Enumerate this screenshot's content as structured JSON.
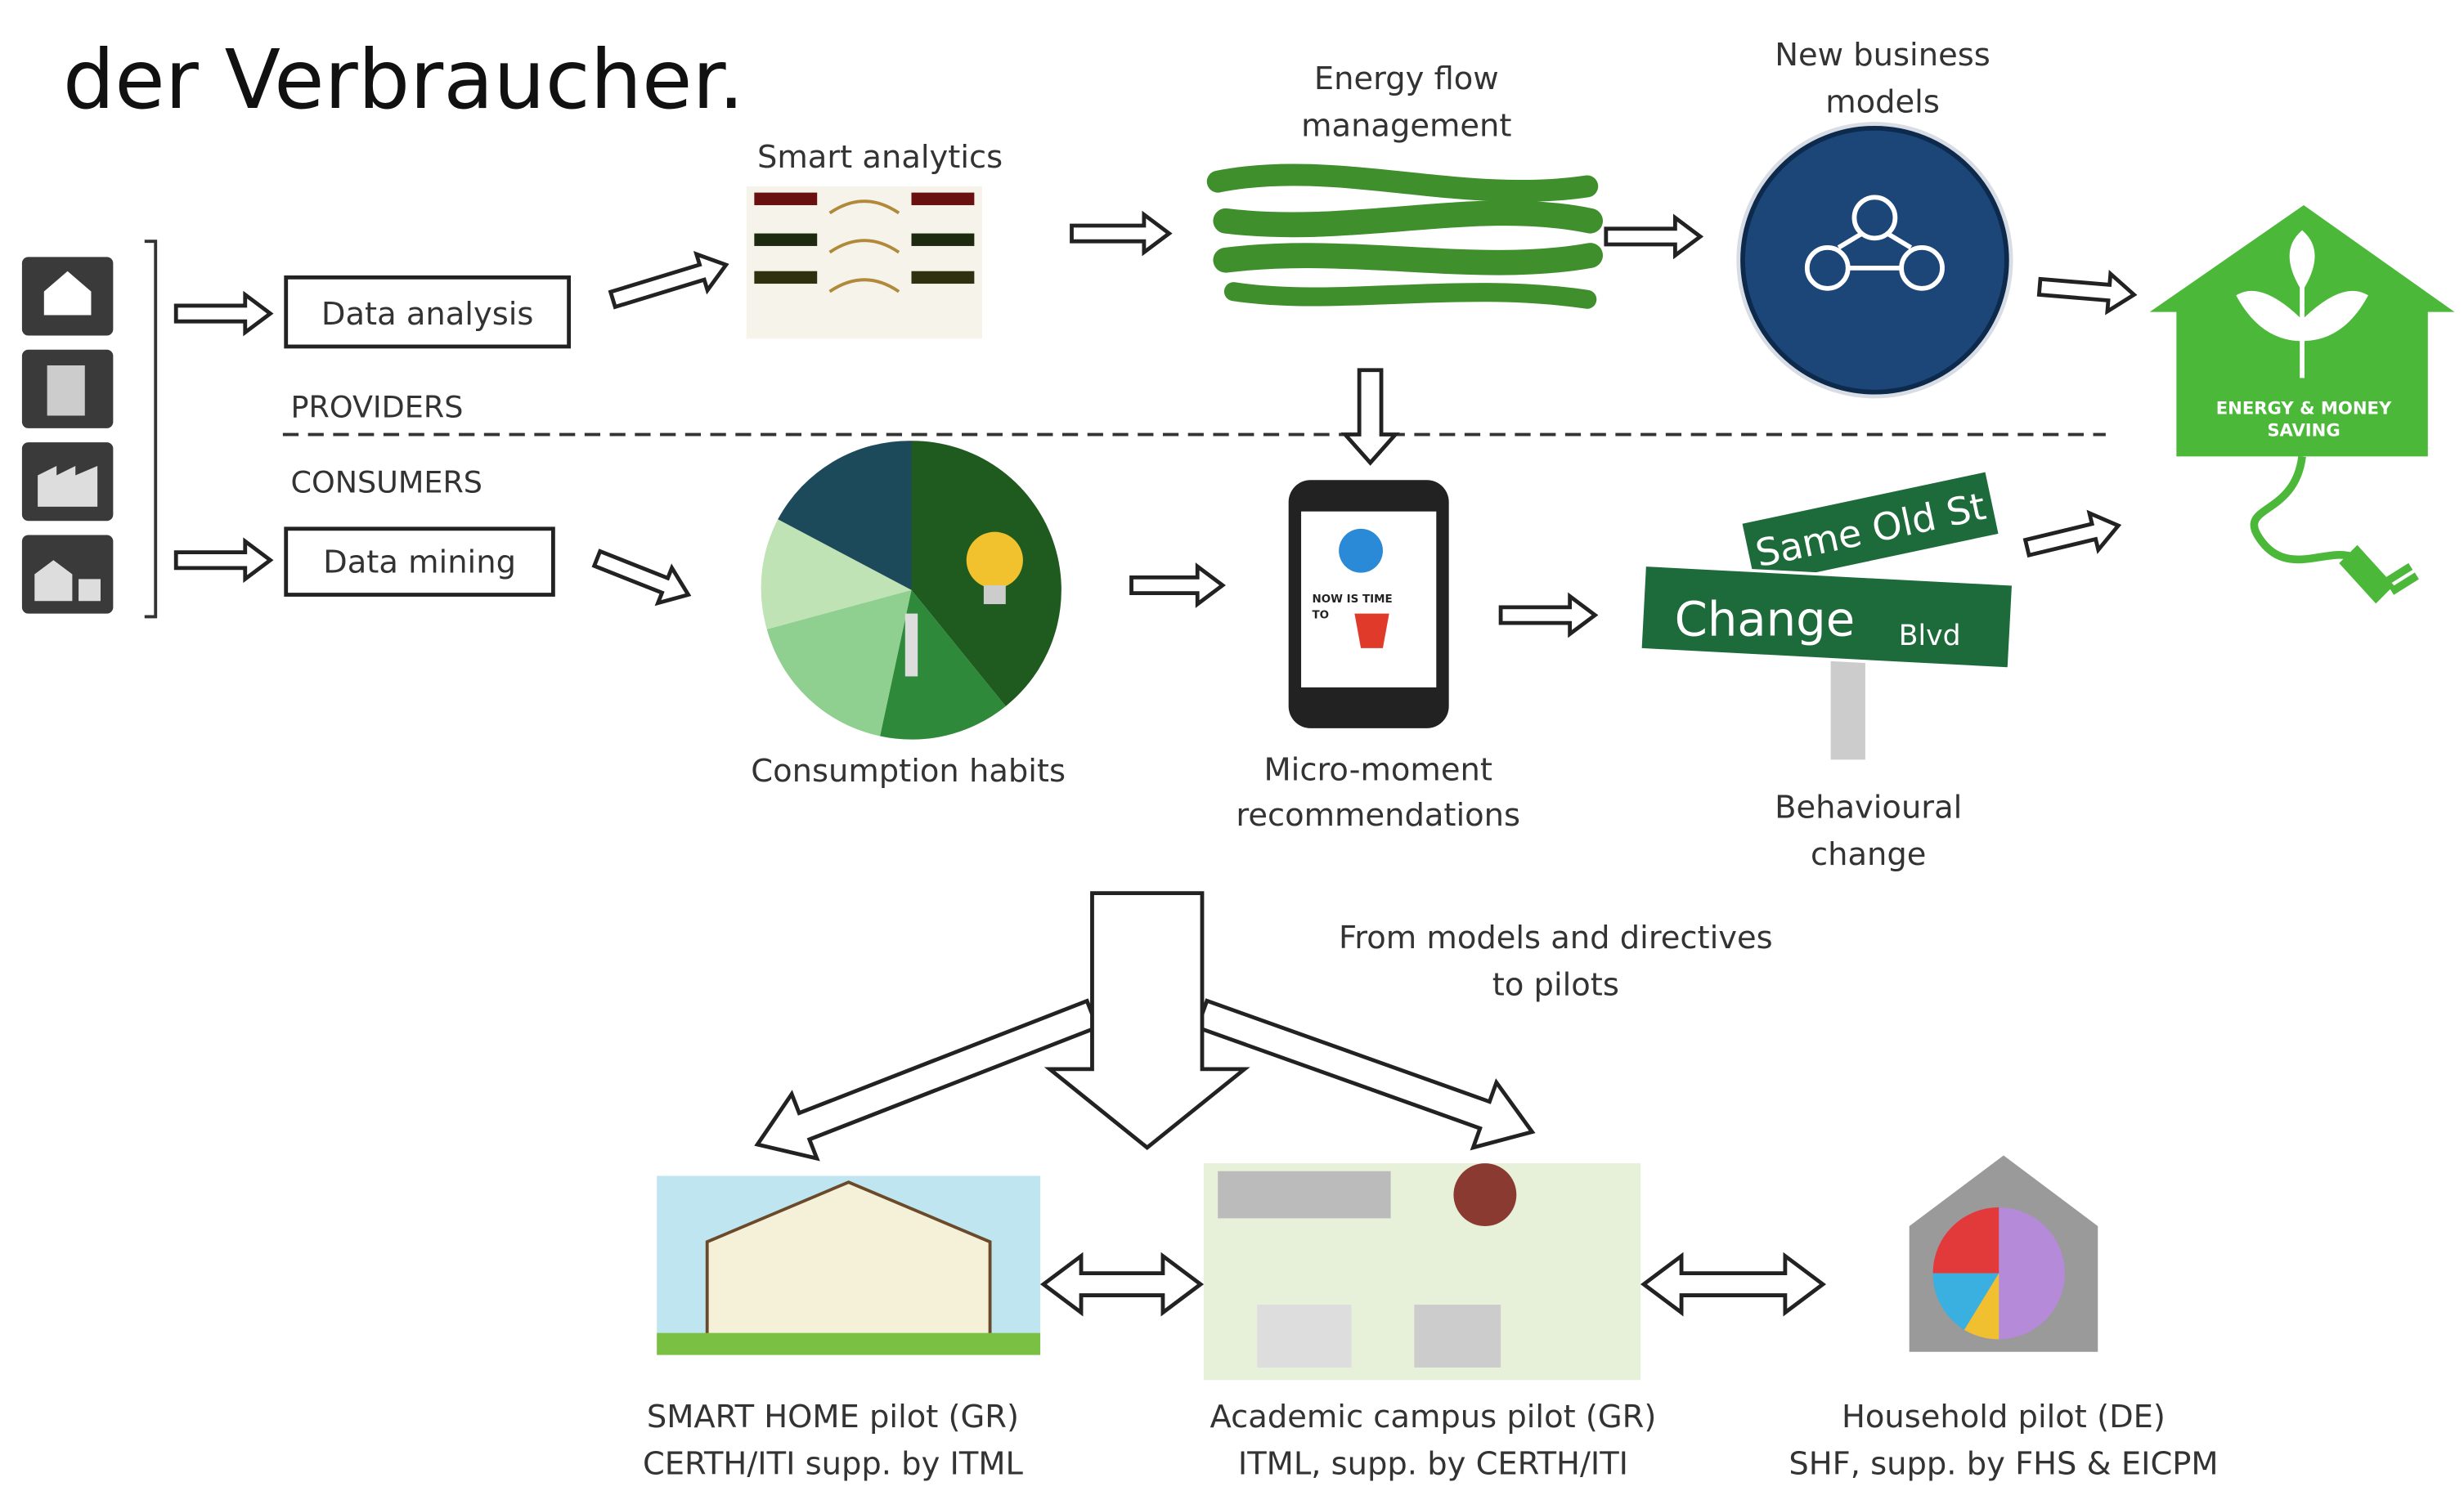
{
  "heading": "der Verbraucher.",
  "left": {
    "data_analysis": "Data analysis",
    "data_mining": "Data mining",
    "providers": "PROVIDERS",
    "consumers": "CONSUMERS"
  },
  "top": {
    "smart_analytics": "Smart analytics",
    "energy_flow": [
      "Energy flow",
      "management"
    ],
    "business_models": [
      "New business",
      "models"
    ],
    "saving": [
      "ENERGY & MONEY",
      "SAVING"
    ]
  },
  "middle": {
    "consumption": "Consumption habits",
    "micro_moment": [
      "Micro-moment",
      "recommendations"
    ],
    "phone_text": [
      "NOW IS TIME",
      "TO"
    ],
    "behaviour": [
      "Behavioural",
      "change"
    ],
    "sign_old": "Same Old St",
    "sign_new": "Change",
    "sign_new_suffix": "Blvd"
  },
  "transition": [
    "From models and directives",
    "to pilots"
  ],
  "pilots": [
    [
      "SMART HOME pilot (GR)",
      "CERTH/ITI supp. by ITML"
    ],
    [
      "Academic campus pilot (GR)",
      "ITML, supp. by CERTH/ITI"
    ],
    [
      "Household pilot (DE)",
      "SHF, supp. by FHS & EICPM"
    ]
  ]
}
